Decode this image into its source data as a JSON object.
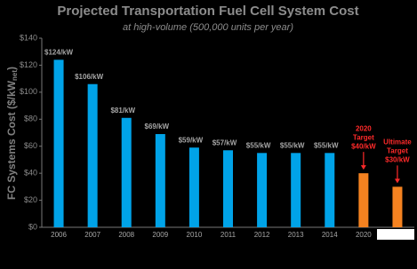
{
  "chart_data": {
    "type": "bar",
    "title": "Projected Transportation Fuel Cell System Cost",
    "subtitle": "at high-volume (500,000 units per year)",
    "y_label": "FC Systems Cost ($/kW",
    "y_label_sub": "net",
    "y_label_end": ")",
    "categories": [
      "2006",
      "2007",
      "2008",
      "2009",
      "2010",
      "2011",
      "2012",
      "2013",
      "2014",
      "2020",
      null
    ],
    "values": [
      124,
      106,
      81,
      69,
      59,
      57,
      55,
      55,
      55,
      40,
      30
    ],
    "value_labels": [
      "$124/kW",
      "$106/kW",
      "$81/kW",
      "$69/kW",
      "$59/kW",
      "$57/kW",
      "$55/kW",
      "$55/kW",
      "$55/kW",
      "$40/kW",
      "$30/kW"
    ],
    "colors": [
      "#00a3e8",
      "#00a3e8",
      "#00a3e8",
      "#00a3e8",
      "#00a3e8",
      "#00a3e8",
      "#00a3e8",
      "#00a3e8",
      "#00a3e8",
      "#f58220",
      "#f58220"
    ],
    "target_notes": [
      null,
      null,
      null,
      null,
      null,
      null,
      null,
      null,
      null,
      [
        "2020",
        "Target"
      ],
      [
        "Ultimate",
        "Target"
      ]
    ],
    "target_color": "#ff2a2a",
    "ylim": [
      0,
      140
    ],
    "yticks": [
      {
        "value": 0,
        "label": "$0"
      },
      {
        "value": 20,
        "label": "$20"
      },
      {
        "value": 40,
        "label": "$40"
      },
      {
        "value": 60,
        "label": "$60"
      },
      {
        "value": 80,
        "label": "$80"
      },
      {
        "value": 100,
        "label": "$100"
      },
      {
        "value": 120,
        "label": "$120"
      },
      {
        "value": 140,
        "label": "$140"
      }
    ],
    "grid": false
  }
}
